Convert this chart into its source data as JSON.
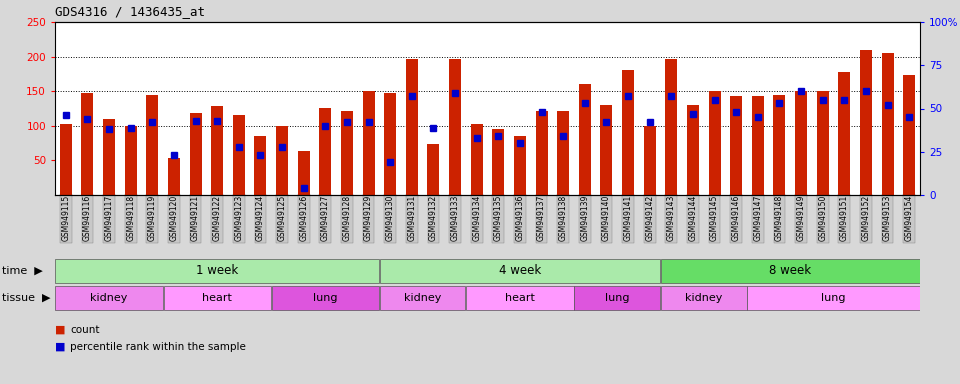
{
  "title": "GDS4316 / 1436435_at",
  "samples": [
    "GSM949115",
    "GSM949116",
    "GSM949117",
    "GSM949118",
    "GSM949119",
    "GSM949120",
    "GSM949121",
    "GSM949122",
    "GSM949123",
    "GSM949124",
    "GSM949125",
    "GSM949126",
    "GSM949127",
    "GSM949128",
    "GSM949129",
    "GSM949130",
    "GSM949131",
    "GSM949132",
    "GSM949133",
    "GSM949134",
    "GSM949135",
    "GSM949136",
    "GSM949137",
    "GSM949138",
    "GSM949139",
    "GSM949140",
    "GSM949141",
    "GSM949142",
    "GSM949143",
    "GSM949144",
    "GSM949145",
    "GSM949146",
    "GSM949147",
    "GSM949148",
    "GSM949149",
    "GSM949150",
    "GSM949151",
    "GSM949152",
    "GSM949153",
    "GSM949154"
  ],
  "counts": [
    103,
    148,
    110,
    100,
    145,
    53,
    118,
    128,
    116,
    85,
    100,
    63,
    125,
    122,
    150,
    148,
    197,
    73,
    197,
    103,
    96,
    85,
    121,
    121,
    160,
    130,
    180,
    100,
    197,
    130,
    150,
    143,
    143,
    145,
    150,
    150,
    178,
    210,
    205,
    173
  ],
  "percentile_ranks_pct": [
    46,
    44,
    38,
    39,
    42,
    23,
    43,
    43,
    28,
    23,
    28,
    4,
    40,
    42,
    42,
    19,
    57,
    39,
    59,
    33,
    34,
    30,
    48,
    34,
    53,
    42,
    57,
    42,
    57,
    47,
    55,
    48,
    45,
    53,
    60,
    55,
    55,
    60,
    52,
    45
  ],
  "bar_color": "#CC2200",
  "dot_color": "#0000CC",
  "bg_color": "#D8D8D8",
  "plot_bg": "#FFFFFF",
  "tick_bg": "#C8C8C8",
  "ylim_left": [
    0,
    250
  ],
  "yticks_left": [
    50,
    100,
    150,
    200,
    250
  ],
  "ylim_right": [
    0,
    100
  ],
  "yticks_right": [
    0,
    25,
    50,
    75,
    100
  ],
  "ytick_labels_right": [
    "0",
    "25",
    "50",
    "75",
    "100%"
  ],
  "hlines": [
    100,
    150,
    200
  ],
  "time_groups": [
    {
      "label": "1 week",
      "start": 0,
      "end": 14,
      "color": "#AAEAAA"
    },
    {
      "label": "4 week",
      "start": 15,
      "end": 27,
      "color": "#AAEAAA"
    },
    {
      "label": "8 week",
      "start": 28,
      "end": 39,
      "color": "#66DD66"
    }
  ],
  "tissue_groups": [
    {
      "label": "kidney",
      "start": 0,
      "end": 4,
      "color": "#EE88EE"
    },
    {
      "label": "heart",
      "start": 5,
      "end": 9,
      "color": "#FF99FF"
    },
    {
      "label": "lung",
      "start": 10,
      "end": 14,
      "color": "#DD55DD"
    },
    {
      "label": "kidney",
      "start": 15,
      "end": 18,
      "color": "#EE88EE"
    },
    {
      "label": "heart",
      "start": 19,
      "end": 23,
      "color": "#FF99FF"
    },
    {
      "label": "lung",
      "start": 24,
      "end": 27,
      "color": "#DD55DD"
    },
    {
      "label": "kidney",
      "start": 28,
      "end": 31,
      "color": "#EE88EE"
    },
    {
      "label": "lung",
      "start": 32,
      "end": 39,
      "color": "#FF99FF"
    }
  ],
  "bar_width": 0.55
}
